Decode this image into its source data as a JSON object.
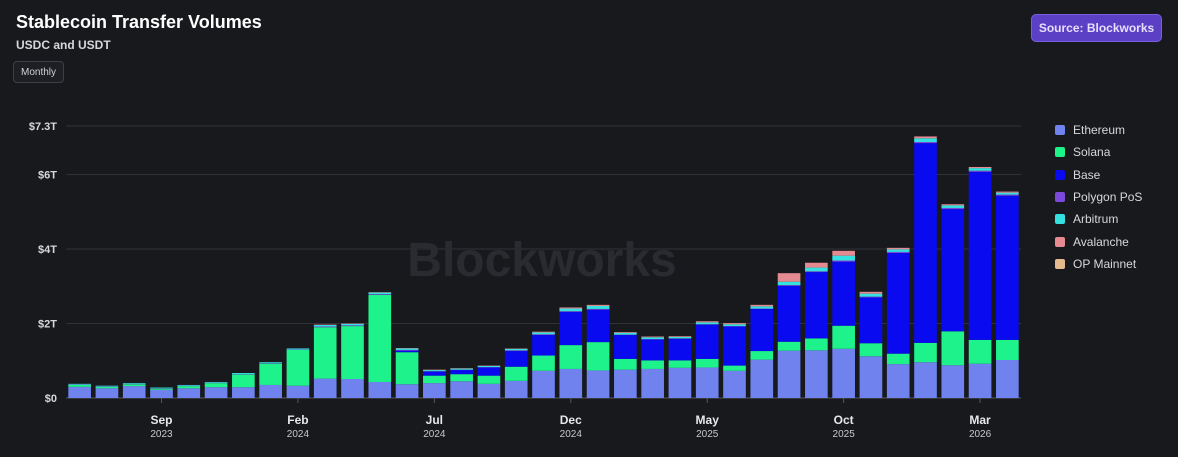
{
  "header": {
    "title": "Stablecoin Transfer Volumes",
    "subtitle": "USDC and USDT",
    "period_button": "Monthly",
    "source_badge": "Source: Blockworks"
  },
  "watermark": "Blockworks",
  "colors": {
    "Ethereum": "#6f82ee",
    "Solana": "#1ef28b",
    "Base": "#0a0af0",
    "Polygon PoS": "#7b49db",
    "Arbitrum": "#34e0e0",
    "Avalanche": "#e58a90",
    "OP Mainnet": "#e3b98e"
  },
  "chart_data": {
    "type": "bar",
    "stacked": true,
    "title": "Stablecoin Transfer Volumes",
    "subtitle": "USDC and USDT",
    "ylabel": "",
    "xlabel": "",
    "ylim": [
      0,
      7.3
    ],
    "yticks": [
      {
        "value": 0,
        "label": "$0"
      },
      {
        "value": 2,
        "label": "$2T"
      },
      {
        "value": 4,
        "label": "$4T"
      },
      {
        "value": 6,
        "label": "$6T"
      },
      {
        "value": 7.3,
        "label": "$7.3T"
      }
    ],
    "xticks": [
      {
        "index": 3,
        "month": "Sep",
        "year": "2023"
      },
      {
        "index": 8,
        "month": "Feb",
        "year": "2024"
      },
      {
        "index": 13,
        "month": "Jul",
        "year": "2024"
      },
      {
        "index": 18,
        "month": "Dec",
        "year": "2024"
      },
      {
        "index": 23,
        "month": "May",
        "year": "2025"
      },
      {
        "index": 28,
        "month": "Oct",
        "year": "2025"
      },
      {
        "index": 33,
        "month": "Mar",
        "year": "2026"
      }
    ],
    "grid": true,
    "legend_position": "right",
    "categories": [
      "Jun 2023",
      "Jul 2023",
      "Aug 2023",
      "Sep 2023",
      "Oct 2023",
      "Nov 2023",
      "Dec 2023",
      "Jan 2024",
      "Feb 2024",
      "Mar 2024",
      "Apr 2024",
      "May 2024",
      "Jun 2024",
      "Jul 2024",
      "Aug 2024",
      "Sep 2024",
      "Oct 2024",
      "Nov 2024",
      "Dec 2024",
      "Jan 2025",
      "Feb 2025",
      "Mar 2025",
      "Apr 2025",
      "May 2025",
      "Jun 2025",
      "Jul 2025",
      "Aug 2025",
      "Sep 2025",
      "Oct 2025",
      "Nov 2025",
      "Dec 2025",
      "Jan 2026",
      "Feb 2026",
      "Mar 2026",
      "Apr 2026"
    ],
    "series": [
      {
        "name": "Ethereum",
        "values": [
          0.3,
          0.26,
          0.32,
          0.22,
          0.26,
          0.29,
          0.29,
          0.35,
          0.33,
          0.52,
          0.51,
          0.43,
          0.37,
          0.4,
          0.45,
          0.38,
          0.46,
          0.73,
          0.78,
          0.74,
          0.76,
          0.78,
          0.81,
          0.82,
          0.73,
          1.03,
          1.27,
          1.28,
          1.32,
          1.12,
          0.91,
          0.96,
          0.88,
          0.92,
          1.02
        ]
      },
      {
        "name": "Solana",
        "values": [
          0.05,
          0.04,
          0.05,
          0.03,
          0.06,
          0.11,
          0.34,
          0.57,
          0.96,
          1.38,
          1.42,
          2.34,
          0.86,
          0.2,
          0.19,
          0.22,
          0.38,
          0.41,
          0.64,
          0.76,
          0.29,
          0.23,
          0.2,
          0.23,
          0.14,
          0.23,
          0.24,
          0.32,
          0.62,
          0.35,
          0.28,
          0.52,
          0.91,
          0.64,
          0.54
        ]
      },
      {
        "name": "Base",
        "values": [
          0,
          0,
          0,
          0,
          0,
          0,
          0,
          0,
          0,
          0,
          0,
          0,
          0.04,
          0.11,
          0.11,
          0.22,
          0.42,
          0.55,
          0.89,
          0.87,
          0.64,
          0.56,
          0.58,
          0.92,
          1.05,
          1.13,
          1.5,
          1.78,
          1.72,
          1.23,
          2.7,
          5.36,
          3.28,
          4.51,
          3.87
        ]
      },
      {
        "name": "Polygon PoS",
        "values": [
          0.01,
          0.01,
          0.01,
          0.01,
          0.01,
          0.01,
          0.01,
          0.01,
          0.01,
          0.02,
          0.02,
          0.02,
          0.02,
          0.01,
          0.01,
          0.01,
          0.02,
          0.02,
          0.02,
          0.02,
          0.01,
          0.01,
          0.01,
          0.01,
          0.01,
          0.01,
          0.02,
          0.02,
          0.03,
          0.02,
          0.03,
          0.03,
          0.03,
          0.03,
          0.03
        ]
      },
      {
        "name": "Arbitrum",
        "values": [
          0.02,
          0.02,
          0.02,
          0.02,
          0.02,
          0.02,
          0.03,
          0.03,
          0.03,
          0.04,
          0.04,
          0.04,
          0.04,
          0.03,
          0.03,
          0.03,
          0.04,
          0.05,
          0.07,
          0.08,
          0.05,
          0.05,
          0.04,
          0.05,
          0.05,
          0.06,
          0.09,
          0.1,
          0.13,
          0.08,
          0.07,
          0.1,
          0.07,
          0.07,
          0.05
        ]
      },
      {
        "name": "Avalanche",
        "values": [
          0,
          0,
          0,
          0,
          0,
          0,
          0,
          0,
          0,
          0.01,
          0.01,
          0.01,
          0.01,
          0.01,
          0.01,
          0.01,
          0.01,
          0.02,
          0.03,
          0.03,
          0.02,
          0.02,
          0.02,
          0.03,
          0.03,
          0.04,
          0.23,
          0.13,
          0.13,
          0.05,
          0.04,
          0.05,
          0.03,
          0.03,
          0.03
        ]
      },
      {
        "name": "OP Mainnet",
        "values": [
          0,
          0,
          0,
          0,
          0,
          0,
          0,
          0,
          0,
          0,
          0,
          0,
          0,
          0,
          0,
          0,
          0,
          0,
          0,
          0,
          0,
          0,
          0,
          0,
          0,
          0,
          0,
          0,
          0,
          0,
          0,
          0,
          0,
          0,
          0
        ]
      }
    ]
  }
}
